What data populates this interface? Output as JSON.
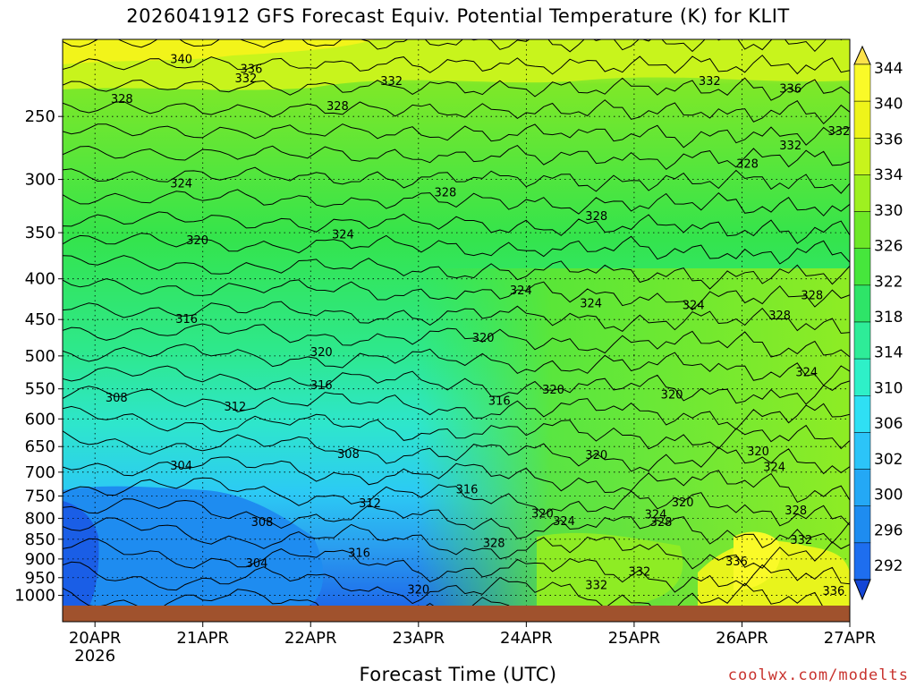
{
  "title": "2026041912 GFS Forecast Equiv. Potential Temperature (K) for KLIT",
  "xlabel": "Forecast Time (UTC)",
  "credit": "coolwx.com/modelts",
  "colors": {
    "ground": "#a0522d",
    "contour": "#000000",
    "credit": "#c8322d"
  },
  "chart_data": {
    "type": "heatmap",
    "title": "2026041912 GFS Forecast Equiv. Potential Temperature (K) for KLIT",
    "xlabel": "Forecast Time (UTC)",
    "ylabel": "",
    "x_ticks": [
      {
        "label": "20APR",
        "sublabel": "2026",
        "day": 0
      },
      {
        "label": "21APR",
        "day": 1
      },
      {
        "label": "22APR",
        "day": 2
      },
      {
        "label": "23APR",
        "day": 3
      },
      {
        "label": "24APR",
        "day": 4
      },
      {
        "label": "25APR",
        "day": 5
      },
      {
        "label": "26APR",
        "day": 6
      },
      {
        "label": "27APR",
        "day": 7
      }
    ],
    "xlim_days": [
      -0.3,
      7
    ],
    "y_ticks": [
      250,
      300,
      350,
      400,
      450,
      500,
      550,
      600,
      650,
      700,
      750,
      800,
      850,
      900,
      950,
      1000
    ],
    "ylim_hpa": [
      200,
      1030
    ],
    "y_scale": "log",
    "colorbar": {
      "levels": [
        292,
        296,
        300,
        302,
        306,
        310,
        314,
        318,
        322,
        326,
        330,
        334,
        336,
        340,
        344
      ],
      "colors": [
        "#1446d6",
        "#1e6eef",
        "#1e8cf0",
        "#24a8f5",
        "#2cc4f8",
        "#2fe0f4",
        "#2ef0c8",
        "#2eec98",
        "#2ee468",
        "#46e63c",
        "#6ee828",
        "#9ef020",
        "#c8f41c",
        "#eef41a",
        "#fafa28",
        "#fde24a"
      ]
    },
    "contour_labels": [
      {
        "day": 0.8,
        "p": 212,
        "v": "340"
      },
      {
        "day": 1.45,
        "p": 218,
        "v": "336"
      },
      {
        "day": 1.4,
        "p": 224,
        "v": "332"
      },
      {
        "day": 2.75,
        "p": 226,
        "v": "332"
      },
      {
        "day": 5.7,
        "p": 226,
        "v": "332"
      },
      {
        "day": 6.45,
        "p": 231,
        "v": "336"
      },
      {
        "day": 0.25,
        "p": 238,
        "v": "328"
      },
      {
        "day": 2.25,
        "p": 243,
        "v": "328"
      },
      {
        "day": 6.45,
        "p": 272,
        "v": "332"
      },
      {
        "day": 6.9,
        "p": 261,
        "v": "332"
      },
      {
        "day": 6.05,
        "p": 287,
        "v": "328"
      },
      {
        "day": 0.8,
        "p": 304,
        "v": "324"
      },
      {
        "day": 3.25,
        "p": 312,
        "v": "328"
      },
      {
        "day": 4.65,
        "p": 334,
        "v": "328"
      },
      {
        "day": 0.95,
        "p": 358,
        "v": "320"
      },
      {
        "day": 2.3,
        "p": 352,
        "v": "324"
      },
      {
        "day": 3.95,
        "p": 414,
        "v": "324"
      },
      {
        "day": 4.6,
        "p": 430,
        "v": "324"
      },
      {
        "day": 5.55,
        "p": 432,
        "v": "324"
      },
      {
        "day": 6.65,
        "p": 420,
        "v": "328"
      },
      {
        "day": 6.35,
        "p": 445,
        "v": "328"
      },
      {
        "day": 0.85,
        "p": 450,
        "v": "316"
      },
      {
        "day": 2.1,
        "p": 495,
        "v": "320"
      },
      {
        "day": 3.6,
        "p": 475,
        "v": "320"
      },
      {
        "day": 6.6,
        "p": 525,
        "v": "324"
      },
      {
        "day": 2.1,
        "p": 545,
        "v": "316"
      },
      {
        "day": 4.25,
        "p": 552,
        "v": "320"
      },
      {
        "day": 5.35,
        "p": 560,
        "v": "320"
      },
      {
        "day": 3.75,
        "p": 570,
        "v": "316"
      },
      {
        "day": 0.2,
        "p": 565,
        "v": "308"
      },
      {
        "day": 1.3,
        "p": 580,
        "v": "312"
      },
      {
        "day": 2.35,
        "p": 665,
        "v": "308"
      },
      {
        "day": 0.8,
        "p": 688,
        "v": "304"
      },
      {
        "day": 4.65,
        "p": 667,
        "v": "320"
      },
      {
        "day": 6.15,
        "p": 660,
        "v": "320"
      },
      {
        "day": 6.3,
        "p": 690,
        "v": "324"
      },
      {
        "day": 3.45,
        "p": 737,
        "v": "316"
      },
      {
        "day": 2.55,
        "p": 767,
        "v": "312"
      },
      {
        "day": 5.45,
        "p": 765,
        "v": "320"
      },
      {
        "day": 4.15,
        "p": 790,
        "v": "320"
      },
      {
        "day": 5.2,
        "p": 792,
        "v": "324"
      },
      {
        "day": 4.35,
        "p": 808,
        "v": "324"
      },
      {
        "day": 5.25,
        "p": 810,
        "v": "328"
      },
      {
        "day": 6.5,
        "p": 783,
        "v": "328"
      },
      {
        "day": 1.55,
        "p": 810,
        "v": "308"
      },
      {
        "day": 3.7,
        "p": 860,
        "v": "328"
      },
      {
        "day": 6.55,
        "p": 853,
        "v": "332"
      },
      {
        "day": 2.45,
        "p": 885,
        "v": "316"
      },
      {
        "day": 1.5,
        "p": 912,
        "v": "304"
      },
      {
        "day": 5.95,
        "p": 907,
        "v": "336"
      },
      {
        "day": 5.05,
        "p": 935,
        "v": "332"
      },
      {
        "day": 4.65,
        "p": 972,
        "v": "332"
      },
      {
        "day": 3.0,
        "p": 985,
        "v": "320"
      },
      {
        "day": 6.85,
        "p": 988,
        "v": "336"
      }
    ]
  }
}
